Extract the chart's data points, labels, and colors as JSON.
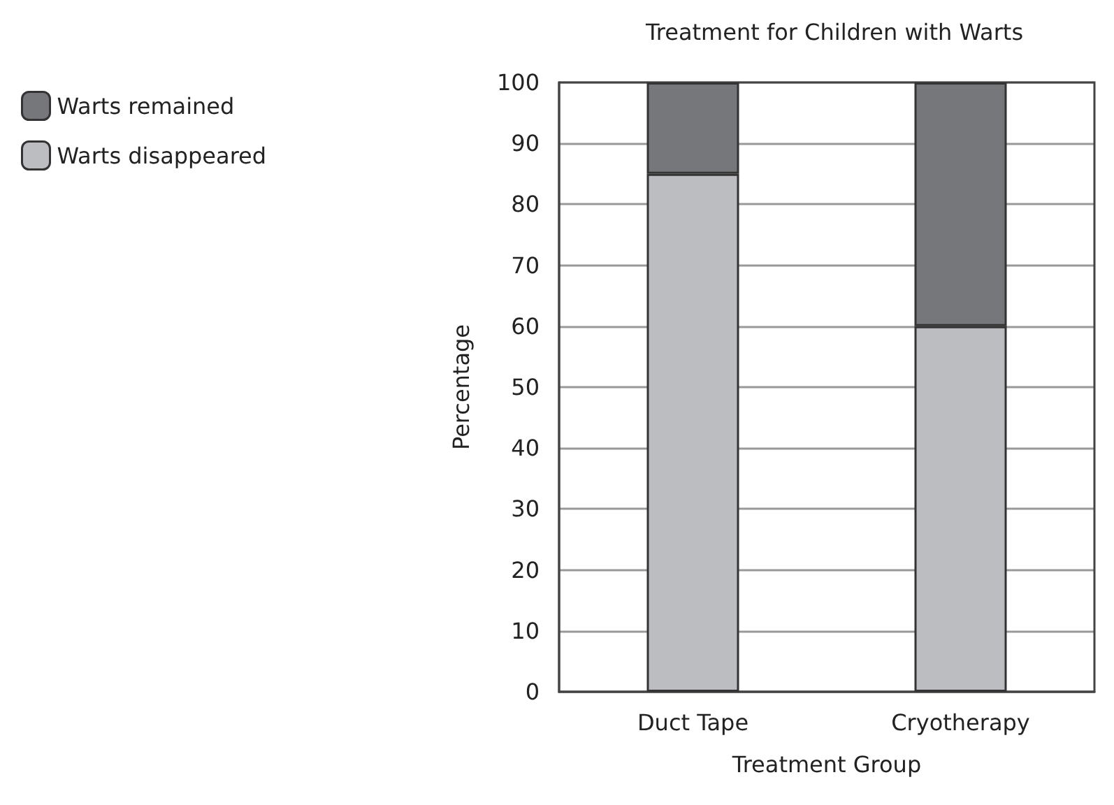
{
  "chart_data": {
    "type": "bar",
    "title": "Treatment for Children with Warts",
    "xlabel": "Treatment Group",
    "ylabel": "Percentage",
    "categories": [
      "Duct Tape",
      "Cryotherapy"
    ],
    "stacked": true,
    "series": [
      {
        "name": "Warts disappeared",
        "color": "#bcbdc1",
        "values": [
          85,
          60
        ]
      },
      {
        "name": "Warts remained",
        "color": "#76777b",
        "values": [
          15,
          40
        ]
      }
    ],
    "ylim": [
      0,
      100
    ],
    "yticks": [
      0,
      10,
      20,
      30,
      40,
      50,
      60,
      70,
      80,
      90,
      100
    ],
    "grid": "y",
    "legend": "top left"
  }
}
